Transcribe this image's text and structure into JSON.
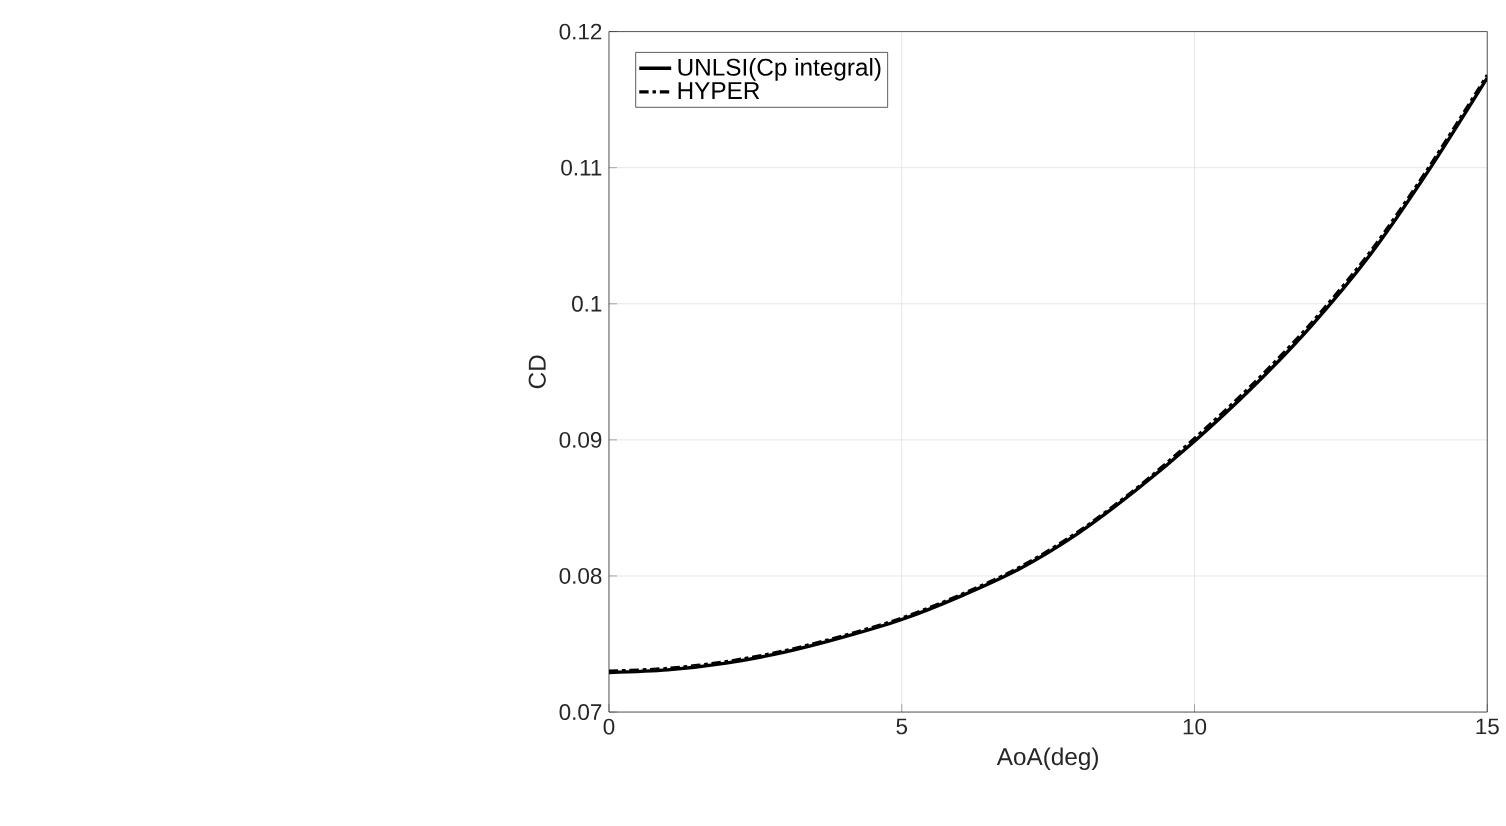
{
  "chart_data": {
    "type": "line",
    "xlabel": "AoA(deg)",
    "ylabel": "CD",
    "x": [
      0,
      1,
      2,
      3,
      4,
      5,
      6,
      7,
      8,
      9,
      10,
      11,
      12,
      13,
      14,
      15
    ],
    "series": [
      {
        "name": "UNLSI(Cp integral)",
        "color": "#000000",
        "line_style": "solid",
        "values": [
          0.0729,
          0.0731,
          0.0736,
          0.0744,
          0.0755,
          0.0768,
          0.0785,
          0.0805,
          0.0831,
          0.0863,
          0.0899,
          0.0939,
          0.0984,
          0.1036,
          0.1098,
          0.1166
        ]
      },
      {
        "name": "HYPER",
        "color": "#000000",
        "line_style": "dashed",
        "values": [
          0.073,
          0.0732,
          0.0737,
          0.0745,
          0.0756,
          0.0769,
          0.0786,
          0.0806,
          0.0832,
          0.0864,
          0.0901,
          0.0941,
          0.0986,
          0.1038,
          0.11,
          0.1168
        ]
      }
    ],
    "xlim": [
      0,
      15
    ],
    "xticks": [
      0,
      5,
      10,
      15
    ],
    "ylim": [
      0.07,
      0.12
    ],
    "yticks": [
      0.07,
      0.08,
      0.09,
      0.1,
      0.11,
      0.12
    ],
    "grid": true,
    "legend": "top left",
    "marker": "none"
  }
}
